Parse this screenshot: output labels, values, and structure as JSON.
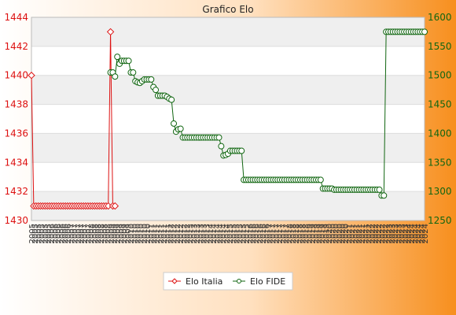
{
  "chart_data": {
    "type": "line",
    "title": "Grafico Elo",
    "xlabel": "",
    "ylabel_left": "",
    "ylabel_right": "",
    "y_left_ticks": [
      1430,
      1432,
      1434,
      1436,
      1438,
      1440,
      1442,
      1444
    ],
    "y_right_ticks": [
      1250,
      1300,
      1350,
      1400,
      1450,
      1500,
      1550,
      1600
    ],
    "ylim_left": [
      1430,
      1444
    ],
    "ylim_right": [
      1250,
      1600
    ],
    "x_tick_labels": [
      "2005",
      "2006",
      "2007",
      "2008",
      "2009",
      "2010",
      "2011",
      "2012",
      "2013",
      "2014",
      "2015",
      "2016",
      "2017",
      "2018",
      "2019",
      "2020",
      "2021",
      "2022",
      "2023",
      "2024"
    ],
    "grid": "horizontal bands",
    "legend_position": "bottom",
    "series": [
      {
        "name": "Elo Italia",
        "axis": "left",
        "color": "#dd1111",
        "marker": "diamond",
        "values": [
          1440,
          1431,
          1431,
          1431,
          1431,
          1431,
          1431,
          1431,
          1431,
          1431,
          1431,
          1431,
          1431,
          1431,
          1431,
          1431,
          1431,
          1431,
          1431,
          1431,
          1431,
          1431,
          1431,
          1431,
          1431,
          1431,
          1431,
          1431,
          1431,
          1431,
          1431,
          1431,
          1431,
          1431,
          1431,
          1443,
          1431,
          1431
        ]
      },
      {
        "name": "Elo FIDE",
        "axis": "right",
        "color": "#116611",
        "marker": "circle",
        "start_index": 35,
        "values": [
          1505,
          1505,
          1498,
          1532,
          1520,
          1525,
          1525,
          1525,
          1525,
          1505,
          1505,
          1490,
          1488,
          1487,
          1490,
          1493,
          1493,
          1493,
          1493,
          1480,
          1475,
          1465,
          1465,
          1465,
          1465,
          1463,
          1460,
          1458,
          1417,
          1403,
          1407,
          1408,
          1393,
          1393,
          1393,
          1393,
          1393,
          1393,
          1393,
          1393,
          1393,
          1393,
          1393,
          1393,
          1393,
          1393,
          1393,
          1393,
          1393,
          1378,
          1362,
          1363,
          1365,
          1370,
          1370,
          1370,
          1370,
          1370,
          1370,
          1320,
          1320,
          1320,
          1320,
          1320,
          1320,
          1320,
          1320,
          1320,
          1320,
          1320,
          1320,
          1320,
          1320,
          1320,
          1320,
          1320,
          1320,
          1320,
          1320,
          1320,
          1320,
          1320,
          1320,
          1320,
          1320,
          1320,
          1320,
          1320,
          1320,
          1320,
          1320,
          1320,
          1320,
          1320,
          1305,
          1305,
          1305,
          1305,
          1305,
          1303,
          1303,
          1303,
          1303,
          1303,
          1303,
          1303,
          1303,
          1303,
          1303,
          1303,
          1303,
          1303,
          1303,
          1303,
          1303,
          1303,
          1303,
          1303,
          1303,
          1303,
          1293,
          1293,
          1575,
          1575,
          1575,
          1575,
          1575,
          1575,
          1575,
          1575,
          1575,
          1575,
          1575,
          1575,
          1575,
          1575,
          1575,
          1575,
          1575,
          1575
        ]
      }
    ]
  }
}
